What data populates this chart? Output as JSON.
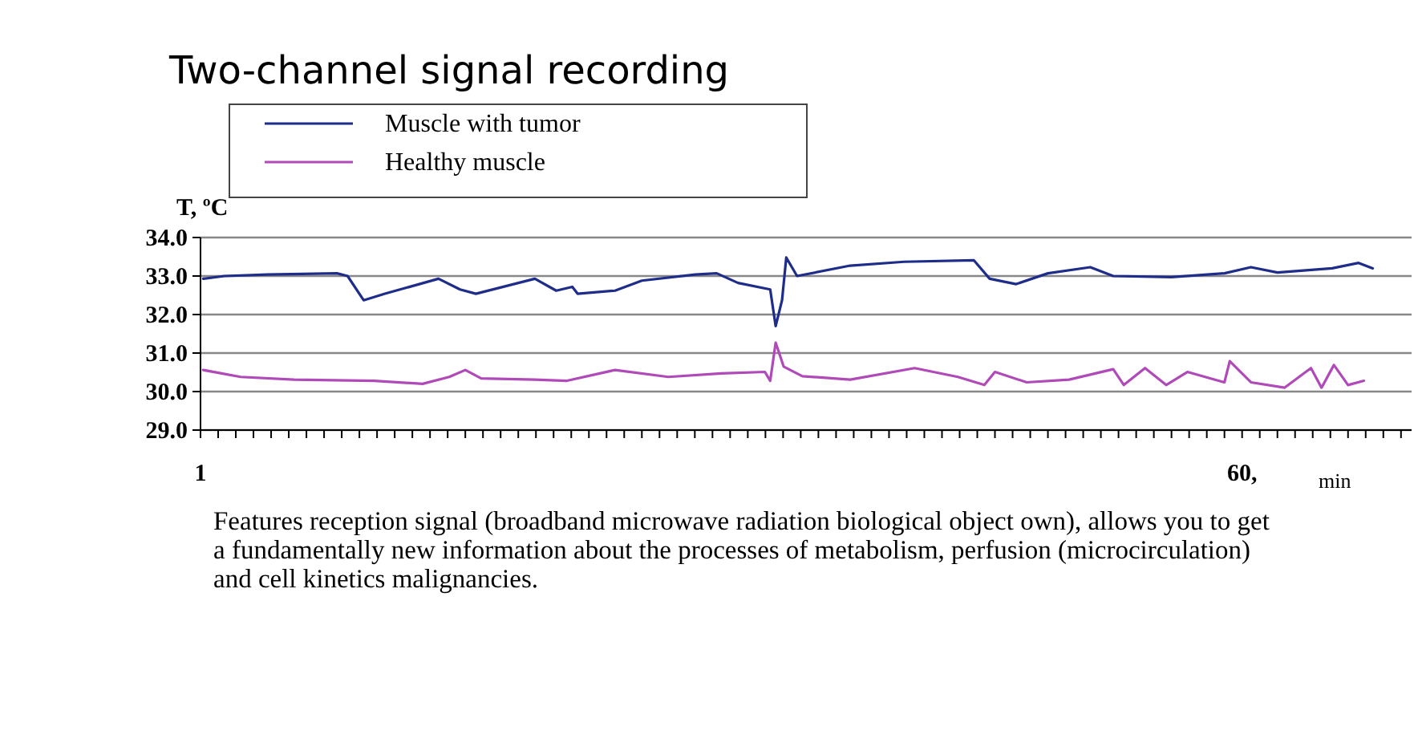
{
  "chart_data": {
    "type": "line",
    "title": "Two-channel signal recording",
    "ylabel": "T, ºC",
    "xlabel": "min",
    "xlim": [
      1,
      69.6
    ],
    "xticks": [
      {
        "value": 1,
        "label": "1"
      },
      {
        "value": 2,
        "label": null
      },
      {
        "value": 3,
        "label": null
      },
      {
        "value": 4,
        "label": null
      },
      {
        "value": 5,
        "label": null
      },
      {
        "value": 6,
        "label": null
      },
      {
        "value": 7,
        "label": null
      },
      {
        "value": 8,
        "label": null
      },
      {
        "value": 9,
        "label": null
      },
      {
        "value": 10,
        "label": null
      },
      {
        "value": 11,
        "label": null
      },
      {
        "value": 12,
        "label": null
      },
      {
        "value": 13,
        "label": null
      },
      {
        "value": 14,
        "label": null
      },
      {
        "value": 15,
        "label": null
      },
      {
        "value": 16,
        "label": null
      },
      {
        "value": 17,
        "label": null
      },
      {
        "value": 18,
        "label": null
      },
      {
        "value": 19,
        "label": null
      },
      {
        "value": 20,
        "label": null
      },
      {
        "value": 21,
        "label": null
      },
      {
        "value": 22,
        "label": null
      },
      {
        "value": 23,
        "label": null
      },
      {
        "value": 24,
        "label": null
      },
      {
        "value": 25,
        "label": null
      },
      {
        "value": 26,
        "label": null
      },
      {
        "value": 27,
        "label": null
      },
      {
        "value": 28,
        "label": null
      },
      {
        "value": 29,
        "label": null
      },
      {
        "value": 30,
        "label": null
      },
      {
        "value": 31,
        "label": null
      },
      {
        "value": 32,
        "label": null
      },
      {
        "value": 33,
        "label": null
      },
      {
        "value": 34,
        "label": null
      },
      {
        "value": 35,
        "label": null
      },
      {
        "value": 36,
        "label": null
      },
      {
        "value": 37,
        "label": null
      },
      {
        "value": 38,
        "label": null
      },
      {
        "value": 39,
        "label": null
      },
      {
        "value": 40,
        "label": null
      },
      {
        "value": 41,
        "label": null
      },
      {
        "value": 42,
        "label": null
      },
      {
        "value": 43,
        "label": null
      },
      {
        "value": 44,
        "label": null
      },
      {
        "value": 45,
        "label": null
      },
      {
        "value": 46,
        "label": null
      },
      {
        "value": 47,
        "label": null
      },
      {
        "value": 48,
        "label": null
      },
      {
        "value": 49,
        "label": null
      },
      {
        "value": 50,
        "label": null
      },
      {
        "value": 51,
        "label": null
      },
      {
        "value": 52,
        "label": null
      },
      {
        "value": 53,
        "label": null
      },
      {
        "value": 54,
        "label": null
      },
      {
        "value": 55,
        "label": null
      },
      {
        "value": 56,
        "label": null
      },
      {
        "value": 57,
        "label": null
      },
      {
        "value": 58,
        "label": null
      },
      {
        "value": 59,
        "label": null
      },
      {
        "value": 60,
        "label": "60,"
      },
      {
        "value": 61,
        "label": null
      },
      {
        "value": 62,
        "label": null
      },
      {
        "value": 63,
        "label": null
      },
      {
        "value": 64,
        "label": null
      },
      {
        "value": 65,
        "label": null
      },
      {
        "value": 66,
        "label": null
      },
      {
        "value": 67,
        "label": null
      },
      {
        "value": 68,
        "label": null
      },
      {
        "value": 69,
        "label": null
      }
    ],
    "ylim": [
      29,
      34
    ],
    "yticks": [
      {
        "value": 29,
        "label": "29.0"
      },
      {
        "value": 30,
        "label": "30.0"
      },
      {
        "value": 31,
        "label": "31.0"
      },
      {
        "value": 32,
        "label": "32.0"
      },
      {
        "value": 33,
        "label": "33.0"
      },
      {
        "value": 34,
        "label": "34.0"
      }
    ],
    "grid": "y",
    "legend": "top left",
    "line_style": "solid",
    "series": [
      {
        "name": "Muscle with tumor",
        "color": "#1f2d8a",
        "x": [
          1.15,
          2.36,
          4.79,
          8.73,
          9.33,
          10.24,
          11.45,
          14.48,
          15.7,
          16.6,
          19.94,
          21.15,
          22.06,
          22.36,
          24.48,
          26,
          29.03,
          30.24,
          31.45,
          33.27,
          33.58,
          33.94,
          34.18,
          34.79,
          37.8,
          40.85,
          44.8,
          45.7,
          47.2,
          49.0,
          51.4,
          52.7,
          56.0,
          59.0,
          60.5,
          62.0,
          65.1,
          66.6,
          67.4
        ],
        "values": [
          32.93,
          33.0,
          33.04,
          33.07,
          33.0,
          32.37,
          32.54,
          32.93,
          32.65,
          32.54,
          32.93,
          32.62,
          32.72,
          32.54,
          32.62,
          32.88,
          33.04,
          33.07,
          32.82,
          32.65,
          31.7,
          32.37,
          33.48,
          33.0,
          33.27,
          33.37,
          33.41,
          32.93,
          32.79,
          33.07,
          33.23,
          33.0,
          32.97,
          33.07,
          33.23,
          33.09,
          33.2,
          33.34,
          33.2
        ]
      },
      {
        "name": "Healthy muscle",
        "color": "#b04ab8",
        "x": [
          1.15,
          3.27,
          6.3,
          10.85,
          13.58,
          15.09,
          16,
          16.9,
          19.94,
          21.76,
          24.48,
          27.5,
          30.5,
          32.97,
          33.27,
          33.58,
          34.03,
          35.09,
          37.8,
          41.45,
          43.9,
          45.4,
          46.0,
          47.8,
          50.2,
          52.7,
          53.3,
          54.5,
          55.7,
          56.9,
          59.0,
          59.3,
          60.5,
          62.4,
          63.9,
          64.5,
          65.2,
          66.0,
          66.9
        ],
        "values": [
          30.56,
          30.38,
          30.31,
          30.28,
          30.2,
          30.38,
          30.56,
          30.34,
          30.31,
          30.28,
          30.56,
          30.38,
          30.47,
          30.51,
          30.28,
          31.27,
          30.65,
          30.4,
          30.31,
          30.61,
          30.38,
          30.17,
          30.51,
          30.24,
          30.31,
          30.58,
          30.17,
          30.61,
          30.17,
          30.51,
          30.24,
          30.79,
          30.24,
          30.1,
          30.61,
          30.1,
          30.69,
          30.17,
          30.28
        ]
      }
    ],
    "annotations": [
      "Features reception signal (broadband microwave radiation biological object own), allows you to get a fundamentally new information about the processes of metabolism, perfusion (microcirculation) and cell kinetics malignancies."
    ]
  }
}
